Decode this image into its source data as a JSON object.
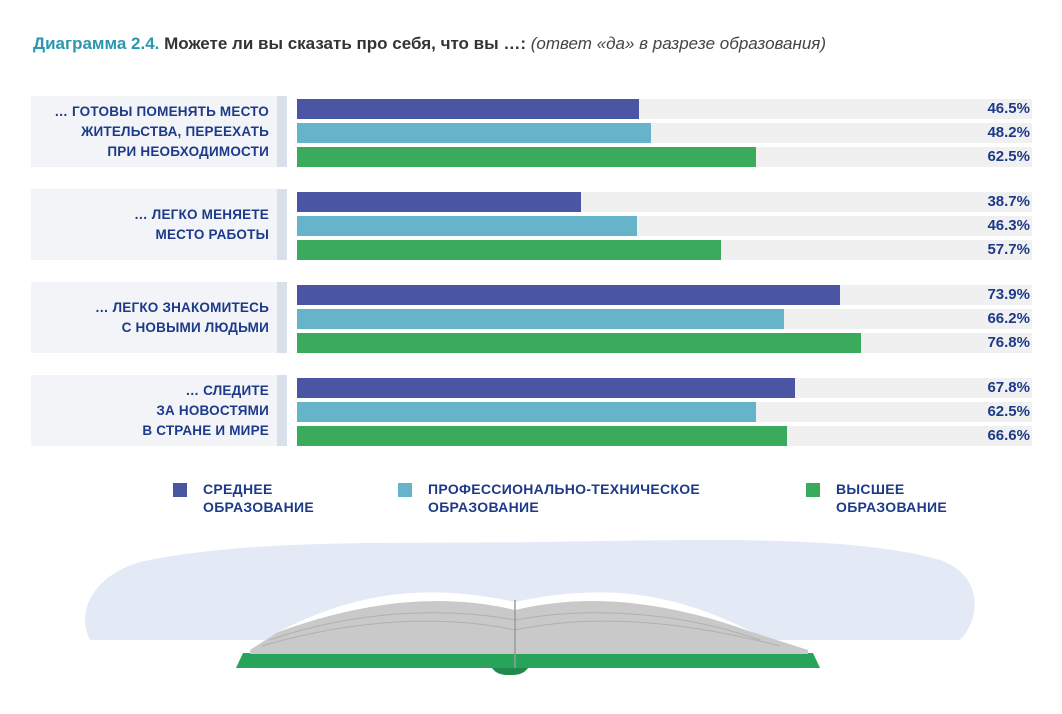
{
  "title": {
    "lead": "Диаграмма 2.4.",
    "main": "Можете ли вы сказать про себя, что вы …:",
    "note": "(ответ «да» в разрезе образования)"
  },
  "colors": {
    "secondary": "#4a56a3",
    "vocational": "#65b4ca",
    "higher": "#3aab5c",
    "label_text": "#1d3a8a",
    "title_accent": "#2a97ae"
  },
  "chart_data": {
    "type": "bar",
    "orientation": "horizontal",
    "xlim": [
      0,
      100
    ],
    "unit": "%",
    "categories": [
      "… ГОТОВЫ ПОМЕНЯТЬ МЕСТО\nЖИТЕЛЬСТВА, ПЕРЕЕХАТЬ\nПРИ НЕОБХОДИМОСТИ",
      "… ЛЕГКО МЕНЯЕТЕ\nМЕСТО РАБОТЫ",
      "… ЛЕГКО ЗНАКОМИТЕСЬ\nС НОВЫМИ ЛЮДЬМИ",
      "… СЛЕДИТЕ\nЗА НОВОСТЯМИ\nВ СТРАНЕ И МИРЕ"
    ],
    "series": [
      {
        "name": "СРЕДНЕЕ\nОБРАЗОВАНИЕ",
        "color": "#4a56a3",
        "values": [
          46.5,
          38.7,
          73.9,
          67.8
        ],
        "labels": [
          "46.5%",
          "38.7%",
          "73.9%",
          "67.8%"
        ]
      },
      {
        "name": "ПРОФЕССИОНАЛЬНО-ТЕХНИЧЕСКОЕ\nОБРАЗОВАНИЕ",
        "color": "#65b4ca",
        "values": [
          48.2,
          46.3,
          66.2,
          62.5
        ],
        "labels": [
          "48.2%",
          "46.3%",
          "66.2%",
          "62.5%"
        ]
      },
      {
        "name": "ВЫСШЕЕ\nОБРАЗОВАНИЕ",
        "color": "#3aab5c",
        "values": [
          62.5,
          57.7,
          76.8,
          66.6
        ],
        "labels": [
          "62.5%",
          "57.7%",
          "76.8%",
          "66.6%"
        ]
      }
    ],
    "legend_position": "bottom",
    "grid": false
  },
  "illustration": {
    "icon": "open-book-icon"
  }
}
